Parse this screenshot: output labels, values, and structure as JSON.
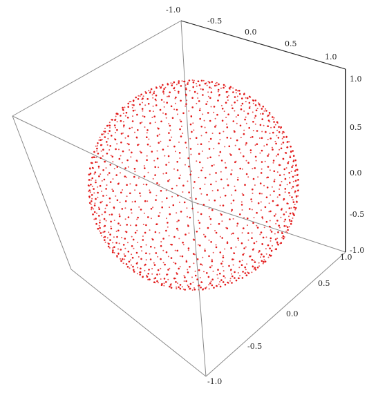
{
  "chart_data": {
    "type": "scatter",
    "dimensions": 3,
    "title": "",
    "xlabel": "",
    "ylabel": "",
    "zlabel": "",
    "xlim": [
      -1.0,
      1.0
    ],
    "ylim": [
      -1.0,
      1.0
    ],
    "zlim": [
      -1.0,
      1.0
    ],
    "grid": false,
    "legend": "none",
    "point_color": "#e21a1a",
    "box_color": "#8a8a8a",
    "surface": "unit sphere",
    "series": [
      {
        "values_description_generator": {
          "radius": 1.0,
          "center": [
            0,
            0,
            0
          ],
          "rows": 40,
          "points_per_row": 56,
          "twist_turns": 0.35
        }
      }
    ],
    "axis_ticks": {
      "top": [
        "-1.0",
        "-0.5",
        "0.0",
        "0.5",
        "1.0"
      ],
      "right": [
        "1.0",
        "0.5",
        "0.0",
        "-0.5",
        "-1.0"
      ],
      "bottom": [
        "1.0",
        "0.5",
        "0.0",
        "-0.5",
        "-1.0"
      ]
    }
  }
}
